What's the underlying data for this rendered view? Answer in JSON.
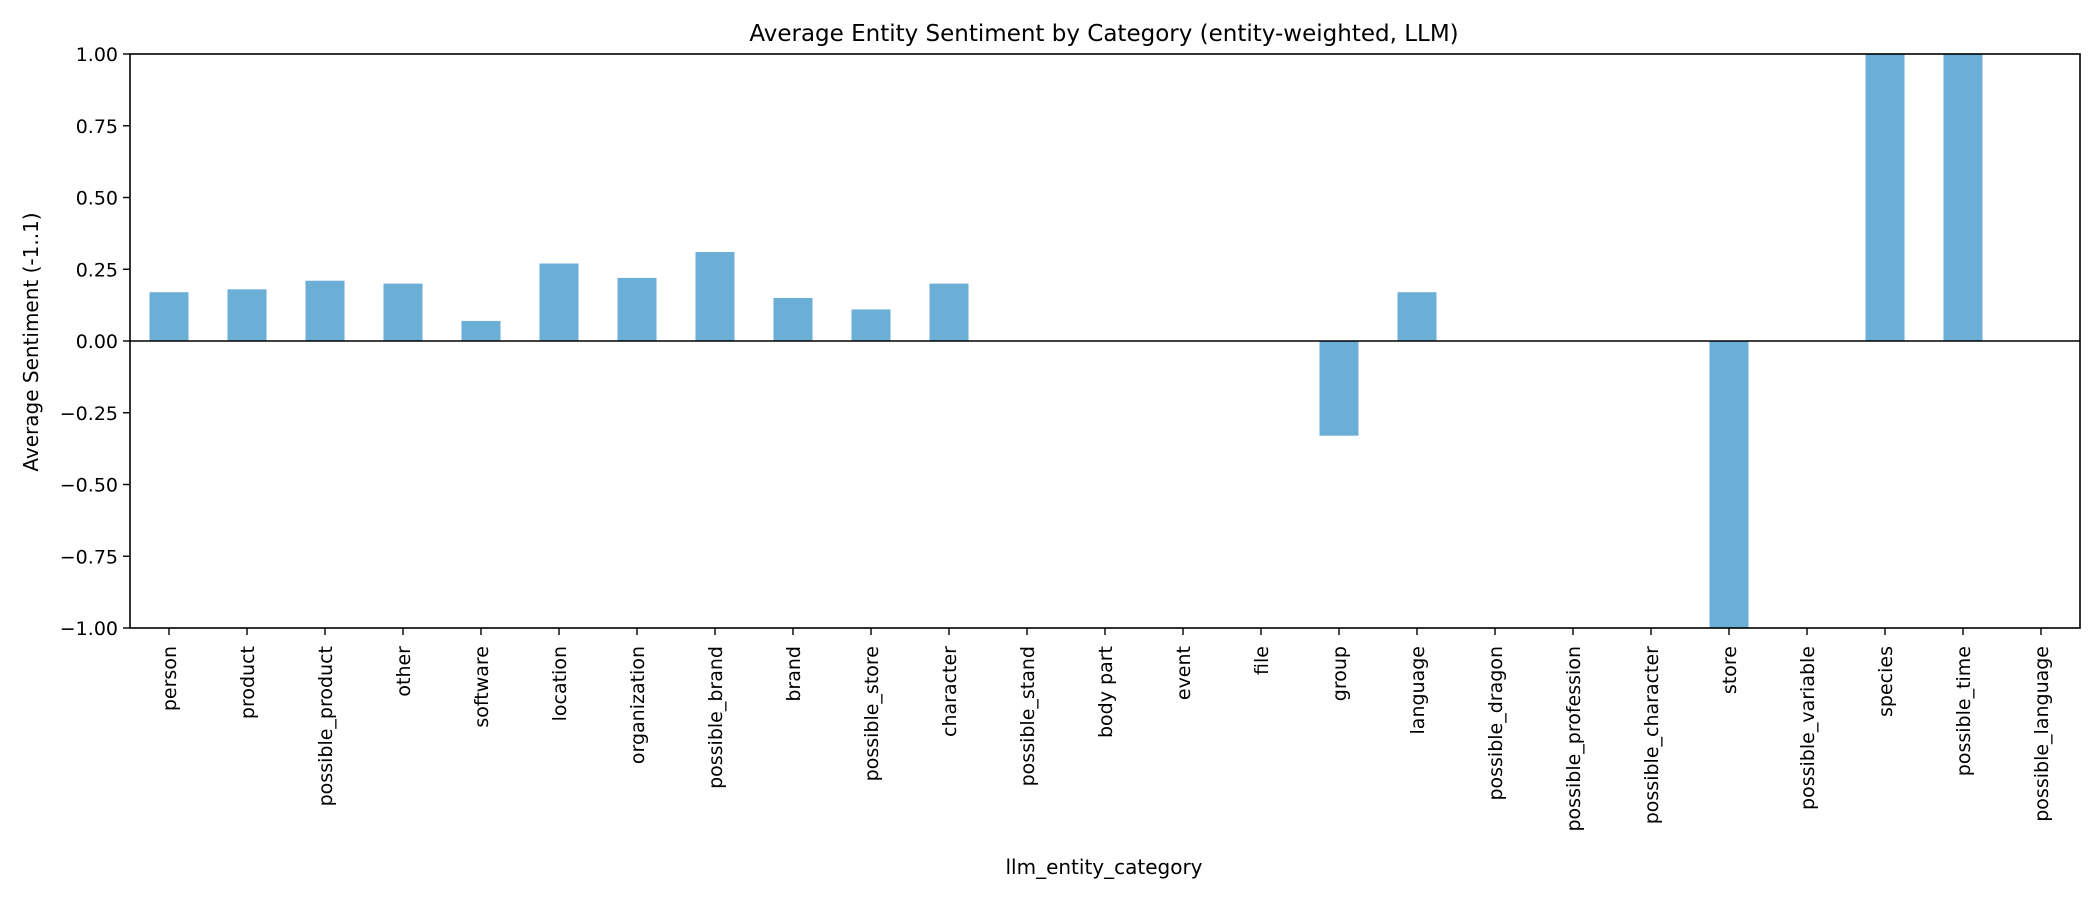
{
  "chart_data": {
    "type": "bar",
    "title": "Average Entity Sentiment by Category (entity-weighted, LLM)",
    "xlabel": "llm_entity_category",
    "ylabel": "Average Sentiment (-1..1)",
    "ylim": [
      -1.0,
      1.0
    ],
    "yticks": [
      1.0,
      0.75,
      0.5,
      0.25,
      0.0,
      -0.25,
      -0.5,
      -0.75,
      -1.0
    ],
    "ytick_labels": [
      "1.00",
      "0.75",
      "0.50",
      "0.25",
      "0.00",
      "−0.25",
      "−0.50",
      "−0.75",
      "−1.00"
    ],
    "grid": false,
    "zero_line": true,
    "bar_color": "#6baed6",
    "categories": [
      "person",
      "product",
      "possible_product",
      "other",
      "software",
      "location",
      "organization",
      "possible_brand",
      "brand",
      "possible_store",
      "character",
      "possible_stand",
      "body part",
      "event",
      "file",
      "group",
      "language",
      "possible_dragon",
      "possible_profession",
      "possible_character",
      "store",
      "possible_variable",
      "species",
      "possible_time",
      "possible_language"
    ],
    "values": [
      0.17,
      0.18,
      0.21,
      0.2,
      0.07,
      0.27,
      0.22,
      0.31,
      0.15,
      0.11,
      0.2,
      0.0,
      0.0,
      0.0,
      0.0,
      -0.33,
      0.17,
      0.0,
      0.0,
      0.0,
      -1.0,
      0.0,
      1.0,
      1.0,
      0.0
    ]
  }
}
